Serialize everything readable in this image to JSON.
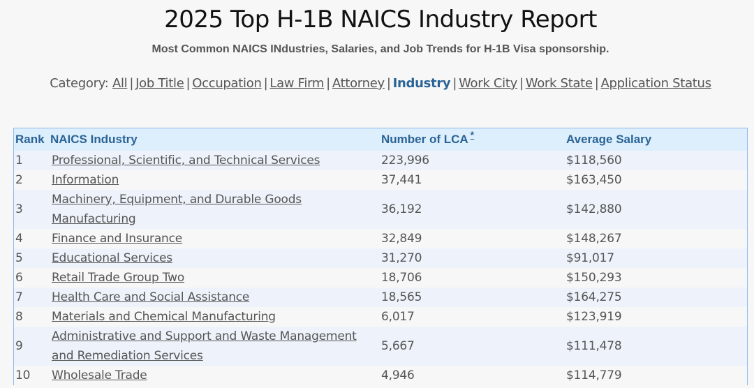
{
  "header": {
    "title": "2025 Top H-1B NAICS Industry Report",
    "subtitle": "Most Common NAICS INdustries, Salaries, and Job Trends for H-1B Visa sponsorship."
  },
  "category_nav": {
    "label": "Category:",
    "items": [
      {
        "label": "All",
        "active": false
      },
      {
        "label": "Job Title",
        "active": false
      },
      {
        "label": "Occupation",
        "active": false
      },
      {
        "label": "Law Firm",
        "active": false
      },
      {
        "label": "Attorney",
        "active": false
      },
      {
        "label": "Industry",
        "active": true
      },
      {
        "label": "Work City",
        "active": false
      },
      {
        "label": "Work State",
        "active": false
      },
      {
        "label": "Application Status",
        "active": false
      }
    ],
    "separator": "|"
  },
  "table": {
    "columns": {
      "rank": "Rank",
      "industry": "NAICS Industry",
      "lca": "Number of LCA",
      "lca_footnote": "*",
      "salary": "Average Salary"
    },
    "rows": [
      {
        "rank": "1",
        "industry": "Professional, Scientific, and Technical Services",
        "lca": "223,996",
        "salary": "$118,560"
      },
      {
        "rank": "2",
        "industry": "Information",
        "lca": "37,441",
        "salary": "$163,450"
      },
      {
        "rank": "3",
        "industry": "Machinery, Equipment, and Durable Goods Manufacturing",
        "lca": "36,192",
        "salary": "$142,880"
      },
      {
        "rank": "4",
        "industry": "Finance and Insurance",
        "lca": "32,849",
        "salary": "$148,267"
      },
      {
        "rank": "5",
        "industry": "Educational Services",
        "lca": "31,270",
        "salary": "$91,017"
      },
      {
        "rank": "6",
        "industry": "Retail Trade Group Two",
        "lca": "18,706",
        "salary": "$150,293"
      },
      {
        "rank": "7",
        "industry": "Health Care and Social Assistance",
        "lca": "18,565",
        "salary": "$164,275"
      },
      {
        "rank": "8",
        "industry": "Materials and Chemical Manufacturing",
        "lca": "6,017",
        "salary": "$123,919"
      },
      {
        "rank": "9",
        "industry": "Administrative and Support and Waste Management and Remediation Services",
        "lca": "5,667",
        "salary": "$111,478"
      },
      {
        "rank": "10",
        "industry": "Wholesale Trade",
        "lca": "4,946",
        "salary": "$114,779"
      }
    ]
  }
}
